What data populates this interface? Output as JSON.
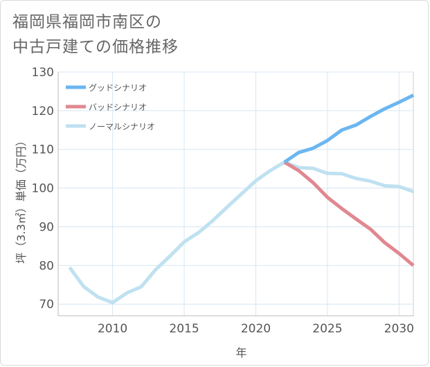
{
  "title_line1": "福岡県福岡市南区の",
  "title_line2": "中古戸建ての価格推移",
  "chart_data": {
    "type": "line",
    "title": "福岡県福岡市南区の中古戸建ての価格推移",
    "xlabel": "年",
    "ylabel": "坪（3.3㎡）単価（万円）",
    "xlim": [
      2006.2,
      2031
    ],
    "ylim": [
      67,
      130
    ],
    "x_ticks": [
      2010,
      2015,
      2020,
      2025,
      2030
    ],
    "y_ticks": [
      70,
      80,
      90,
      100,
      110,
      120,
      130
    ],
    "grid": true,
    "legend_position": "top-left",
    "series": [
      {
        "name": "グッドシナリオ",
        "color": "#6cb6f0",
        "x": [
          2022,
          2023,
          2024,
          2025,
          2026,
          2027,
          2028,
          2029,
          2030,
          2031
        ],
        "y": [
          106.7,
          109.2,
          110.3,
          112.3,
          115.0,
          116.3,
          118.5,
          120.5,
          122.2,
          124.0
        ]
      },
      {
        "name": "バッドシナリオ",
        "color": "#e08890",
        "x": [
          2022,
          2023,
          2024,
          2025,
          2026,
          2027,
          2028,
          2029,
          2030,
          2031
        ],
        "y": [
          106.7,
          104.5,
          101.4,
          97.6,
          94.7,
          92.0,
          89.4,
          85.9,
          83.1,
          80.0
        ]
      },
      {
        "name": "ノーマルシナリオ",
        "color": "#bfe1f0",
        "x": [
          2007,
          2008,
          2009,
          2010,
          2011,
          2012,
          2013,
          2014,
          2015,
          2016,
          2017,
          2018,
          2019,
          2020,
          2021,
          2022,
          2023,
          2024,
          2025,
          2026,
          2027,
          2028,
          2029,
          2030,
          2031
        ],
        "y": [
          79.5,
          74.5,
          71.8,
          70.4,
          72.9,
          74.5,
          78.9,
          82.4,
          86.1,
          88.5,
          91.6,
          95.1,
          98.5,
          101.9,
          104.5,
          106.7,
          105.3,
          105.1,
          103.8,
          103.7,
          102.5,
          101.8,
          100.6,
          100.4,
          99.1
        ]
      }
    ]
  }
}
